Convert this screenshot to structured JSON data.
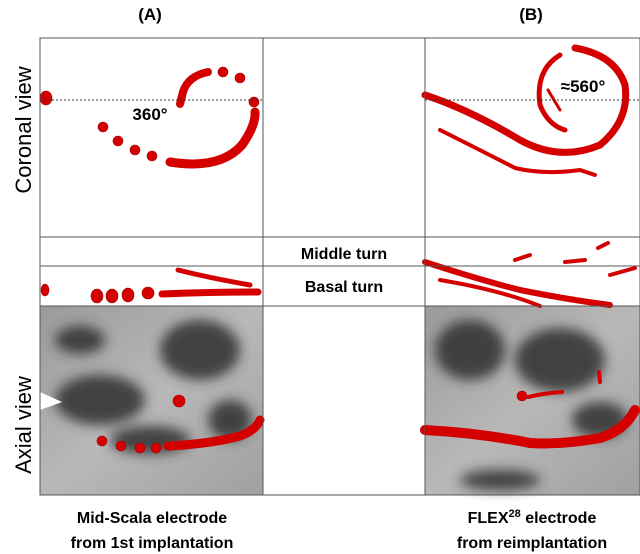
{
  "panels": [
    {
      "label": "(A)",
      "angle": "360°",
      "caption": {
        "line1": "Mid-Scala electrode",
        "line2": "from 1st implantation"
      }
    },
    {
      "label": "(B)",
      "angle": "≈560°",
      "caption": {
        "name": "FLEX",
        "superscript": "28",
        "rest": " electrode",
        "line2": "from reimplantation"
      }
    }
  ],
  "row_labels": [
    "Coronal view",
    "Axial view"
  ],
  "turn_labels": [
    "Middle turn",
    "Basal turn"
  ]
}
